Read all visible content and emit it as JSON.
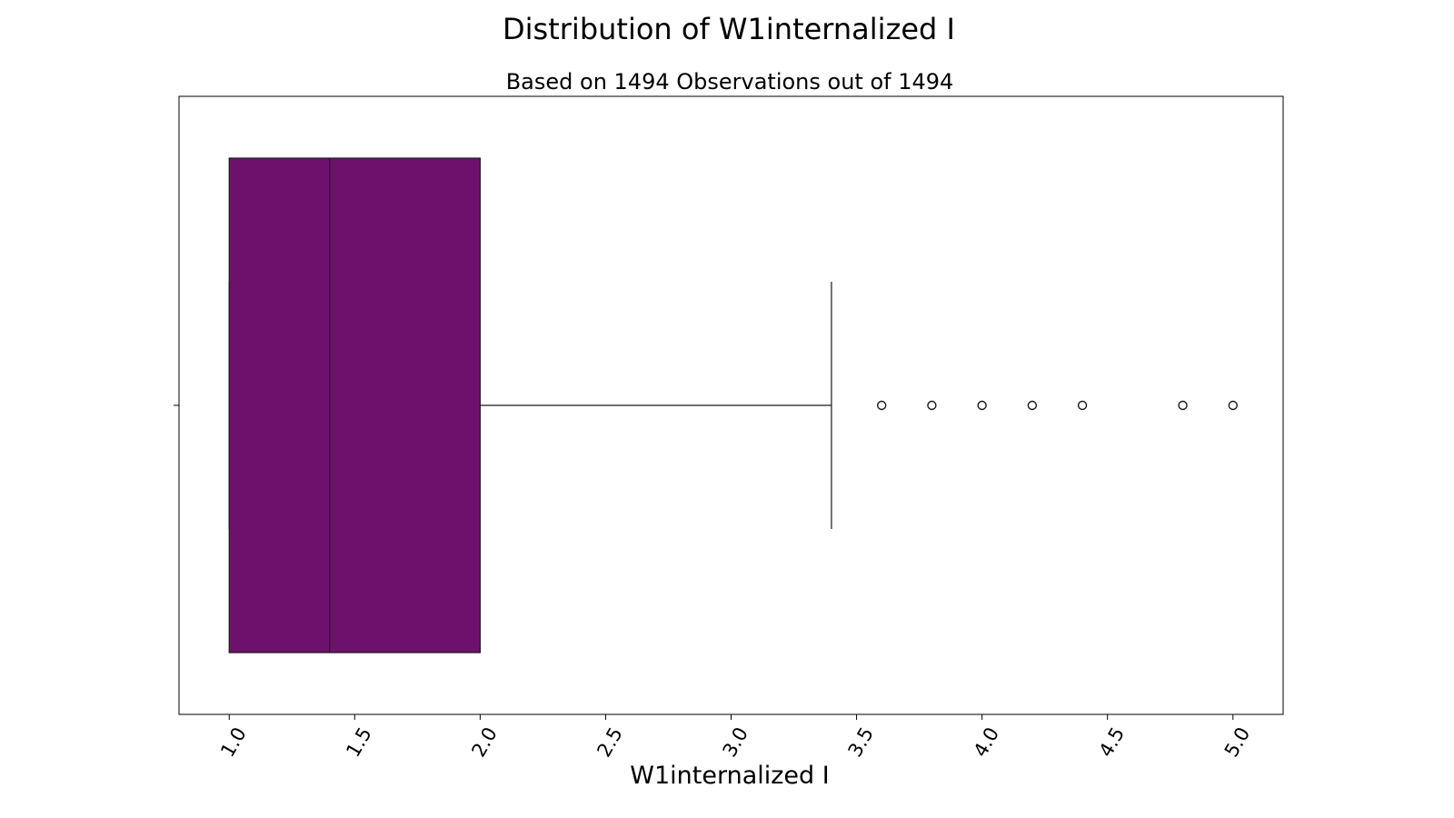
{
  "chart_data": {
    "type": "boxplot",
    "title": "Distribution of W1internalized I",
    "subtitle": "Based on 1494 Observations out of 1494",
    "xlabel": "W1internalized I",
    "ylabel": "",
    "xlim": [
      0.8,
      5.2
    ],
    "xticks": [
      1.0,
      1.5,
      2.0,
      2.5,
      3.0,
      3.5,
      4.0,
      4.5,
      5.0
    ],
    "xtick_labels": [
      "1.0",
      "1.5",
      "2.0",
      "2.5",
      "3.0",
      "3.5",
      "4.0",
      "4.5",
      "5.0"
    ],
    "tick_rotation_deg": -60,
    "grid": false,
    "orientation": "horizontal",
    "box": {
      "q1": 1.0,
      "median": 1.4,
      "q3": 2.0,
      "whisker_low": 1.0,
      "whisker_high": 3.4
    },
    "outliers": [
      3.6,
      3.8,
      4.0,
      4.2,
      4.4,
      4.8,
      5.0
    ],
    "colors": {
      "box_fill": "#6e116d",
      "line": "#1a1a1a",
      "frame": "#000000"
    }
  }
}
